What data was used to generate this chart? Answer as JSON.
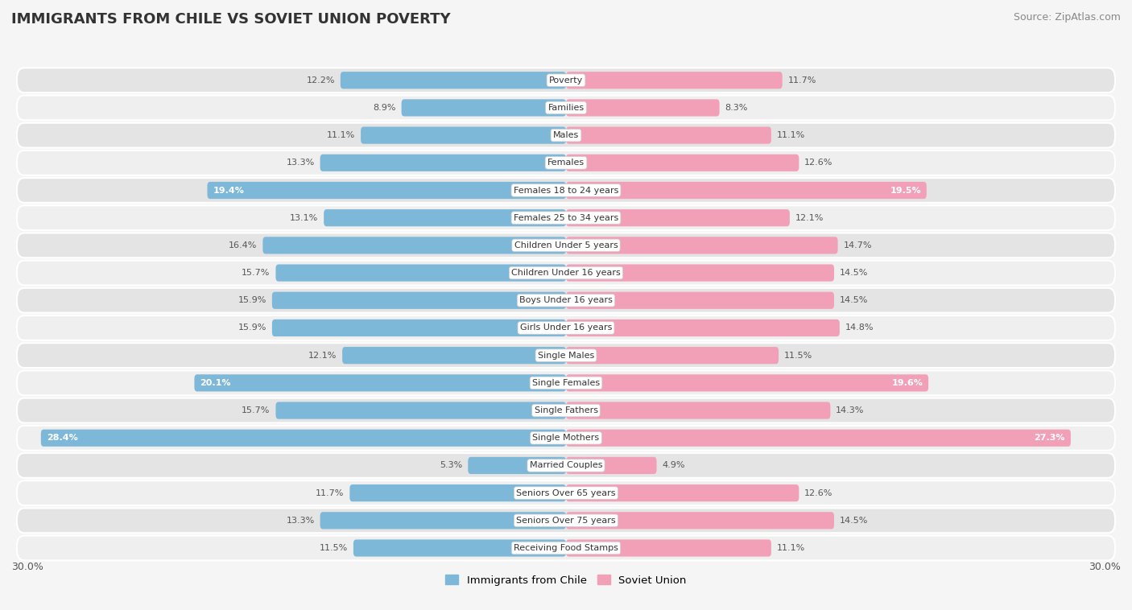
{
  "title": "IMMIGRANTS FROM CHILE VS SOVIET UNION POVERTY",
  "source": "Source: ZipAtlas.com",
  "categories": [
    "Poverty",
    "Families",
    "Males",
    "Females",
    "Females 18 to 24 years",
    "Females 25 to 34 years",
    "Children Under 5 years",
    "Children Under 16 years",
    "Boys Under 16 years",
    "Girls Under 16 years",
    "Single Males",
    "Single Females",
    "Single Fathers",
    "Single Mothers",
    "Married Couples",
    "Seniors Over 65 years",
    "Seniors Over 75 years",
    "Receiving Food Stamps"
  ],
  "chile_values": [
    12.2,
    8.9,
    11.1,
    13.3,
    19.4,
    13.1,
    16.4,
    15.7,
    15.9,
    15.9,
    12.1,
    20.1,
    15.7,
    28.4,
    5.3,
    11.7,
    13.3,
    11.5
  ],
  "soviet_values": [
    11.7,
    8.3,
    11.1,
    12.6,
    19.5,
    12.1,
    14.7,
    14.5,
    14.5,
    14.8,
    11.5,
    19.6,
    14.3,
    27.3,
    4.9,
    12.6,
    14.5,
    11.1
  ],
  "chile_color": "#7eb8d8",
  "soviet_color": "#f2a0b8",
  "chile_label": "Immigrants from Chile",
  "soviet_label": "Soviet Union",
  "axis_limit": 30.0,
  "row_light": "#efefef",
  "row_dark": "#e4e4e4",
  "bg_color": "#f5f5f5",
  "white_text_rows_chile": [
    4,
    11,
    13
  ],
  "white_text_rows_soviet": [
    4,
    11,
    13
  ],
  "title_fontsize": 13,
  "source_fontsize": 9,
  "label_fontsize": 8,
  "value_fontsize": 8
}
